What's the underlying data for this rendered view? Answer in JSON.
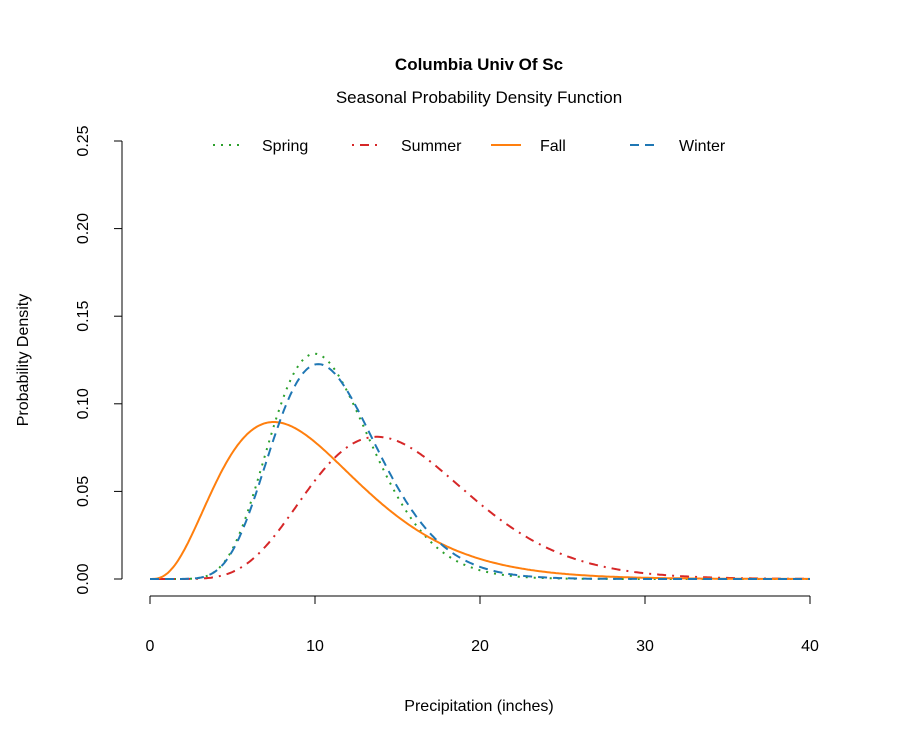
{
  "chart_data": {
    "type": "line",
    "title": "Columbia Univ Of Sc",
    "subtitle": "Seasonal Probability Density Function",
    "xlabel": "Precipitation (inches)",
    "ylabel": "Probability Density",
    "xlim": [
      0,
      40
    ],
    "ylim": [
      0,
      0.25
    ],
    "xticks": [
      0,
      10,
      20,
      30,
      40
    ],
    "xtick_labels": [
      "0",
      "10",
      "20",
      "30",
      "40"
    ],
    "yticks": [
      0,
      0.05,
      0.1,
      0.15,
      0.2,
      0.25
    ],
    "ytick_labels": [
      "0.00",
      "0.05",
      "0.10",
      "0.15",
      "0.20",
      "0.25"
    ],
    "grid": false,
    "legend_position": "top",
    "series": [
      {
        "name": "Spring",
        "color": "#2ca02c",
        "style": "dotted",
        "distribution": "gamma",
        "shape": 11.5,
        "scale": 0.95,
        "peak_x": 10,
        "peak_y": 0.123
      },
      {
        "name": "Summer",
        "color": "#d62728",
        "style": "dotdash",
        "distribution": "gamma",
        "shape": 9,
        "scale": 1.72,
        "peak_x": 13.8,
        "peak_y": 0.078
      },
      {
        "name": "Fall",
        "color": "#ff7f0e",
        "style": "solid",
        "distribution": "gamma",
        "shape": 4,
        "scale": 2.5,
        "peak_x": 7.5,
        "peak_y": 0.09
      },
      {
        "name": "Winter",
        "color": "#1f77b4",
        "style": "dashed",
        "distribution": "gamma",
        "shape": 11,
        "scale": 1.02,
        "peak_x": 10.2,
        "peak_y": 0.119
      }
    ]
  }
}
